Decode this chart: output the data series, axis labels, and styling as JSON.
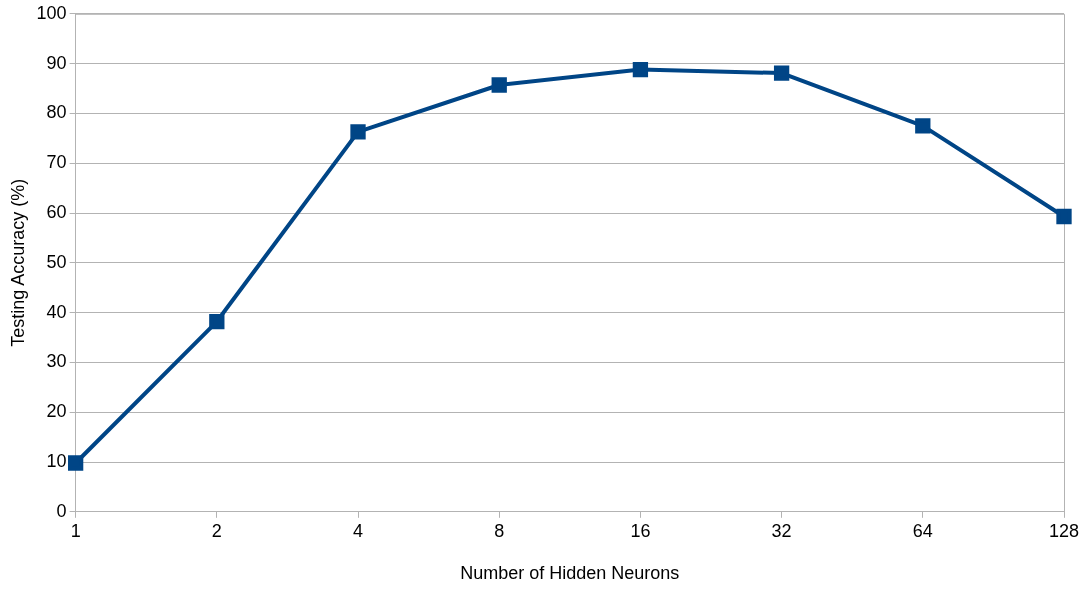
{
  "chart_data": {
    "type": "line",
    "xlabel": "Number of Hidden Neurons",
    "ylabel": "Testing Accuracy (%)",
    "categories": [
      "1",
      "2",
      "4",
      "8",
      "16",
      "32",
      "64",
      "128"
    ],
    "values": [
      9.8,
      38.2,
      76.3,
      85.7,
      88.8,
      88.1,
      77.5,
      59.3
    ],
    "color": "#004586",
    "ylim": [
      0,
      100
    ],
    "yticks": [
      0,
      10,
      20,
      30,
      40,
      50,
      60,
      70,
      80,
      90,
      100
    ],
    "grid": "y",
    "legend": false,
    "marker": "square",
    "line_style": "solid"
  }
}
